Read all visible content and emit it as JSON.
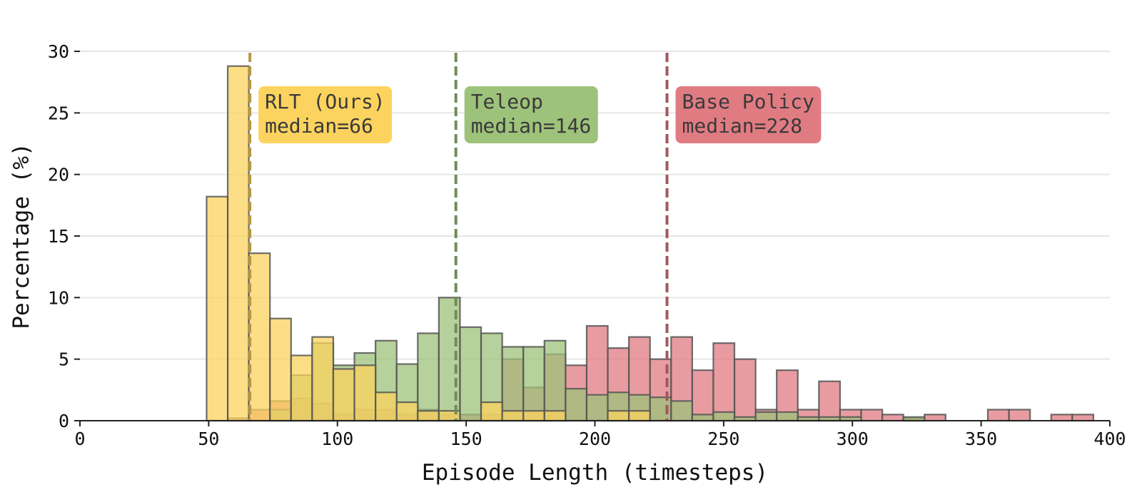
{
  "chart_data": {
    "type": "bar",
    "xlabel": "Episode Length (timesteps)",
    "ylabel": "Percentage (%)",
    "xlim": [
      0,
      400
    ],
    "ylim": [
      0,
      30
    ],
    "xticks": [
      0,
      50,
      100,
      150,
      200,
      250,
      300,
      350,
      400
    ],
    "yticks": [
      0,
      5,
      10,
      15,
      20,
      25,
      30
    ],
    "grid": "horizontal",
    "bin_width": 8.2,
    "series": [
      {
        "name": "Base Policy",
        "color": "#e07b82",
        "median": 228,
        "annotation": [
          "Base Policy",
          "median=228"
        ],
        "bins": [
          {
            "x": 57.4,
            "y": 0.2
          },
          {
            "x": 65.6,
            "y": 0.9
          },
          {
            "x": 73.8,
            "y": 1.6
          },
          {
            "x": 82.0,
            "y": 1.8
          },
          {
            "x": 90.2,
            "y": 1.4
          },
          {
            "x": 98.4,
            "y": 0.5
          },
          {
            "x": 106.6,
            "y": 0.9
          },
          {
            "x": 114.8,
            "y": 0.9
          },
          {
            "x": 123.0,
            "y": 0.5
          },
          {
            "x": 131.2,
            "y": 0.9
          },
          {
            "x": 139.4,
            "y": 0.5
          },
          {
            "x": 147.6,
            "y": 0.5
          },
          {
            "x": 155.8,
            "y": 0.5
          },
          {
            "x": 164.0,
            "y": 5.0
          },
          {
            "x": 172.2,
            "y": 2.7
          },
          {
            "x": 180.4,
            "y": 5.4
          },
          {
            "x": 188.6,
            "y": 4.5
          },
          {
            "x": 196.8,
            "y": 7.7
          },
          {
            "x": 205.0,
            "y": 5.9
          },
          {
            "x": 213.2,
            "y": 6.8
          },
          {
            "x": 221.4,
            "y": 5.0
          },
          {
            "x": 229.6,
            "y": 6.8
          },
          {
            "x": 237.8,
            "y": 4.1
          },
          {
            "x": 246.0,
            "y": 6.3
          },
          {
            "x": 254.2,
            "y": 5.0
          },
          {
            "x": 262.4,
            "y": 0.9
          },
          {
            "x": 270.6,
            "y": 4.1
          },
          {
            "x": 278.8,
            "y": 0.9
          },
          {
            "x": 287.0,
            "y": 3.2
          },
          {
            "x": 295.2,
            "y": 0.9
          },
          {
            "x": 303.4,
            "y": 0.9
          },
          {
            "x": 311.6,
            "y": 0.5
          },
          {
            "x": 319.8,
            "y": 0.2
          },
          {
            "x": 328.0,
            "y": 0.5
          },
          {
            "x": 352.6,
            "y": 0.9
          },
          {
            "x": 360.8,
            "y": 0.9
          },
          {
            "x": 377.2,
            "y": 0.5
          },
          {
            "x": 385.4,
            "y": 0.5
          }
        ]
      },
      {
        "name": "Teleop",
        "color": "#9dc27a",
        "median": 146,
        "annotation": [
          "Teleop",
          "median=146"
        ],
        "bins": [
          {
            "x": 73.8,
            "y": 0.9
          },
          {
            "x": 82.0,
            "y": 3.7
          },
          {
            "x": 90.2,
            "y": 6.3
          },
          {
            "x": 98.4,
            "y": 4.5
          },
          {
            "x": 106.6,
            "y": 5.5
          },
          {
            "x": 114.8,
            "y": 6.5
          },
          {
            "x": 123.0,
            "y": 4.6
          },
          {
            "x": 131.2,
            "y": 7.1
          },
          {
            "x": 139.4,
            "y": 10.0
          },
          {
            "x": 147.6,
            "y": 7.6
          },
          {
            "x": 155.8,
            "y": 7.1
          },
          {
            "x": 164.0,
            "y": 6.0
          },
          {
            "x": 172.2,
            "y": 6.0
          },
          {
            "x": 180.4,
            "y": 6.5
          },
          {
            "x": 188.6,
            "y": 2.6
          },
          {
            "x": 196.8,
            "y": 2.1
          },
          {
            "x": 205.0,
            "y": 2.3
          },
          {
            "x": 213.2,
            "y": 2.1
          },
          {
            "x": 221.4,
            "y": 1.9
          },
          {
            "x": 229.6,
            "y": 1.6
          },
          {
            "x": 237.8,
            "y": 0.5
          },
          {
            "x": 246.0,
            "y": 0.7
          },
          {
            "x": 254.2,
            "y": 0.3
          },
          {
            "x": 262.4,
            "y": 0.7
          },
          {
            "x": 270.6,
            "y": 0.7
          },
          {
            "x": 278.8,
            "y": 0.3
          },
          {
            "x": 287.0,
            "y": 0.3
          },
          {
            "x": 295.2,
            "y": 0.3
          },
          {
            "x": 319.8,
            "y": 0.3
          }
        ]
      },
      {
        "name": "RLT (Ours)",
        "color": "#fbd35e",
        "median": 66,
        "annotation": [
          "RLT (Ours)",
          "median=66"
        ],
        "bins": [
          {
            "x": 49.2,
            "y": 18.2
          },
          {
            "x": 57.4,
            "y": 28.8
          },
          {
            "x": 65.6,
            "y": 13.6
          },
          {
            "x": 73.8,
            "y": 8.3
          },
          {
            "x": 82.0,
            "y": 5.3
          },
          {
            "x": 90.2,
            "y": 6.8
          },
          {
            "x": 98.4,
            "y": 4.2
          },
          {
            "x": 106.6,
            "y": 4.5
          },
          {
            "x": 114.8,
            "y": 2.3
          },
          {
            "x": 123.0,
            "y": 1.5
          },
          {
            "x": 131.2,
            "y": 0.8
          },
          {
            "x": 139.4,
            "y": 0.8
          },
          {
            "x": 155.8,
            "y": 1.5
          },
          {
            "x": 164.0,
            "y": 0.8
          },
          {
            "x": 172.2,
            "y": 0.8
          },
          {
            "x": 180.4,
            "y": 0.8
          },
          {
            "x": 205.0,
            "y": 0.8
          },
          {
            "x": 213.2,
            "y": 0.8
          }
        ]
      }
    ]
  }
}
